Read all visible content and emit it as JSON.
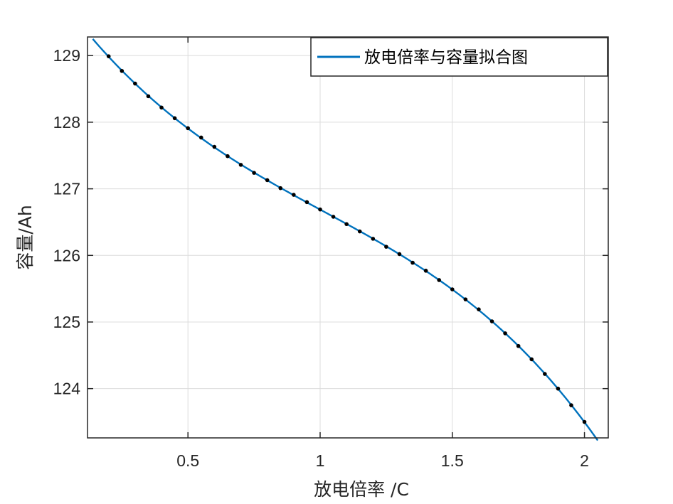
{
  "chart_data": {
    "type": "line",
    "title": "",
    "xlabel": "放电倍率 /C",
    "ylabel": "容量/Ah",
    "xlim": [
      0.12,
      2.09
    ],
    "ylim": [
      123.26,
      129.28
    ],
    "xticks": [
      0.5,
      1,
      1.5,
      2
    ],
    "xtick_labels": [
      "0.5",
      "1",
      "1.5",
      "2"
    ],
    "yticks": [
      124,
      125,
      126,
      127,
      128,
      129
    ],
    "ytick_labels": [
      "124",
      "125",
      "126",
      "127",
      "128",
      "129"
    ],
    "grid": true,
    "legend_position": "top-right",
    "series": [
      {
        "name": "放电倍率与容量拟合图",
        "color": "#0072BD",
        "x": [
          0.2,
          0.25,
          0.3,
          0.35,
          0.4,
          0.45,
          0.5,
          0.55,
          0.6,
          0.65,
          0.7,
          0.75,
          0.8,
          0.85,
          0.9,
          0.95,
          1.0,
          1.05,
          1.1,
          1.15,
          1.2,
          1.25,
          1.3,
          1.35,
          1.4,
          1.45,
          1.5,
          1.55,
          1.6,
          1.65,
          1.7,
          1.75,
          1.8,
          1.85,
          1.9,
          1.95,
          2.0
        ],
        "y": [
          128.99,
          128.77,
          128.58,
          128.39,
          128.22,
          128.06,
          127.91,
          127.77,
          127.63,
          127.49,
          127.36,
          127.24,
          127.13,
          127.01,
          126.91,
          126.8,
          126.69,
          126.58,
          126.47,
          126.36,
          126.25,
          126.13,
          126.02,
          125.89,
          125.77,
          125.63,
          125.49,
          125.34,
          125.19,
          125.01,
          124.83,
          124.64,
          124.44,
          124.22,
          124.0,
          123.75,
          123.5
        ]
      }
    ],
    "curve_x_range": [
      0.14,
      2.05
    ],
    "marker_color": "#000000"
  }
}
